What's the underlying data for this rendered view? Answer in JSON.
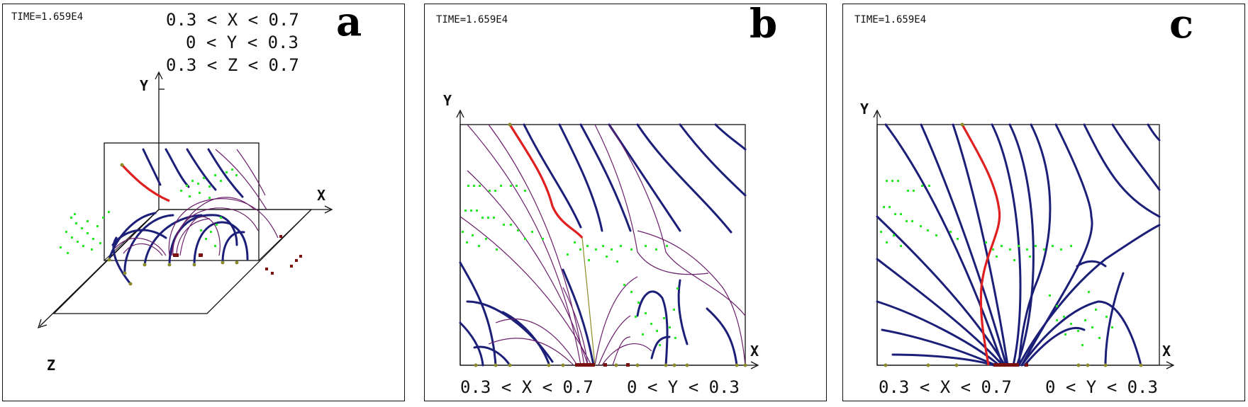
{
  "panels": [
    {
      "letter": "a",
      "time": "TIME=1.659E4",
      "ranges": [
        "0.3 < X < 0.7",
        "0 < Y < 0.3",
        "0.3 < Z < 0.7"
      ],
      "axes": {
        "x": "X",
        "y": "Y",
        "z": "Z"
      }
    },
    {
      "letter": "b",
      "time": "TIME=1.659E4",
      "ranges": [
        "0.3 < X < 0.7",
        "0 < Y < 0.3"
      ],
      "axes": {
        "x": "X",
        "y": "Y"
      }
    },
    {
      "letter": "c",
      "time": "TIME=1.659E4",
      "ranges": [
        "0.3 < X < 0.7",
        "0 < Y < 0.3"
      ],
      "axes": {
        "x": "X",
        "y": "Y"
      }
    }
  ],
  "colors": {
    "thick_field_line": "#1c1f78",
    "thin_field_line": "#6b1f6b",
    "highlight_line": "#e02020",
    "particles": "#22ee22",
    "footpoints": "#8b8b2a",
    "footpoints_dark": "#7a1010",
    "frame": "#111111"
  }
}
